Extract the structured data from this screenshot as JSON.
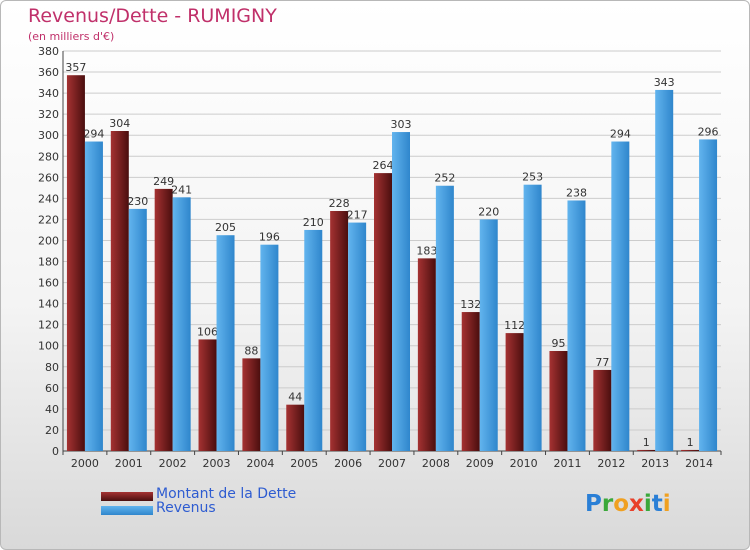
{
  "title": "Revenus/Dette - RUMIGNY",
  "subtitle": "(en milliers d'€)",
  "logo": {
    "text": "Proxiti",
    "letter_colors": [
      "#2a7fd6",
      "#3aa83a",
      "#f0a020",
      "#e8402a",
      "#3aa83a",
      "#2a7fd6",
      "#f0a020"
    ]
  },
  "colors": {
    "dette": "#7a1f1f",
    "revenus": "#4aa0e0",
    "grid": "#cccccc",
    "axis": "#444444"
  },
  "chart_data": {
    "type": "bar",
    "categories": [
      "2000",
      "2001",
      "2002",
      "2003",
      "2004",
      "2005",
      "2006",
      "2007",
      "2008",
      "2009",
      "2010",
      "2011",
      "2012",
      "2013",
      "2014"
    ],
    "series": [
      {
        "name": "Montant de la Dette",
        "values": [
          357,
          304,
          249,
          106,
          88,
          44,
          228,
          264,
          183,
          132,
          112,
          95,
          77,
          1,
          1
        ]
      },
      {
        "name": "Revenus",
        "values": [
          294,
          230,
          241,
          205,
          196,
          210,
          217,
          303,
          252,
          220,
          253,
          238,
          294,
          343,
          296
        ]
      }
    ],
    "ylim": [
      0,
      380
    ],
    "ytick_step": 20,
    "grid": true,
    "legend_position": "bottom-left"
  }
}
